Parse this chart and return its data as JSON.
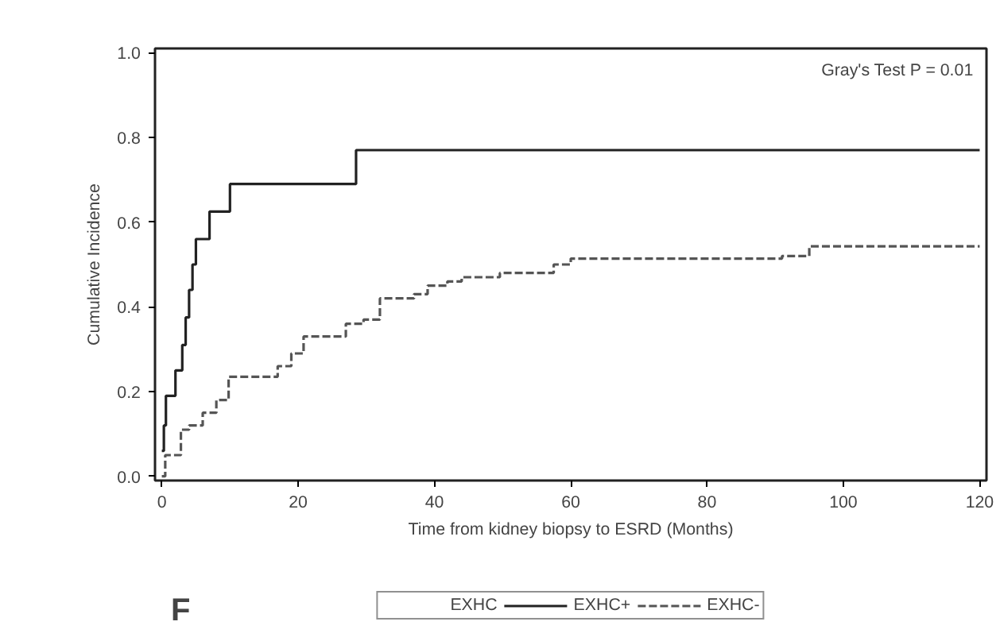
{
  "chart_data": {
    "type": "step",
    "xlabel": "Time from kidney biopsy to ESRD (Months)",
    "ylabel": "Cumulative Incidence",
    "legend_title": "EXHC",
    "legend": "bottom",
    "grid": false,
    "annotations": [
      "Gray's Test P = 0.01",
      "F"
    ],
    "xlim": [
      -1,
      121
    ],
    "xticks": [
      0,
      20,
      40,
      60,
      80,
      100,
      120
    ],
    "ylim": [
      -0.01,
      1.01
    ],
    "yticks": [
      {
        "value": 0,
        "label": "0.0"
      },
      {
        "value": 0.2,
        "label": "0.2"
      },
      {
        "value": 0.4,
        "label": "0.4"
      },
      {
        "value": 0.6,
        "label": "0.6"
      },
      {
        "value": 0.8,
        "label": "0.8"
      },
      {
        "value": 1,
        "label": "1.0"
      }
    ],
    "series": [
      {
        "name": "EXHC+",
        "color": "#222222",
        "line_style": "solid",
        "x": [
          0,
          0.3,
          0.6,
          2,
          3,
          3.5,
          4,
          4.5,
          5,
          7,
          10,
          28.5,
          120
        ],
        "values": [
          0.06,
          0.12,
          0.19,
          0.25,
          0.31,
          0.375,
          0.44,
          0.5,
          0.56,
          0.625,
          0.69,
          0.77,
          0.77
        ]
      },
      {
        "name": "EXHC-",
        "color": "#555555",
        "line_style": "dashed",
        "x": [
          0,
          0.5,
          2.8,
          4,
          6,
          8,
          9.8,
          15.4,
          17,
          19,
          20.8,
          25,
          27,
          29.6,
          32,
          37,
          39,
          41.9,
          44,
          49.6,
          57.5,
          60,
          91,
          95,
          120
        ],
        "values": [
          0,
          0.05,
          0.11,
          0.12,
          0.15,
          0.18,
          0.235,
          0.235,
          0.26,
          0.29,
          0.33,
          0.33,
          0.36,
          0.37,
          0.42,
          0.43,
          0.45,
          0.46,
          0.47,
          0.48,
          0.5,
          0.514,
          0.52,
          0.543,
          0.543
        ]
      }
    ]
  }
}
